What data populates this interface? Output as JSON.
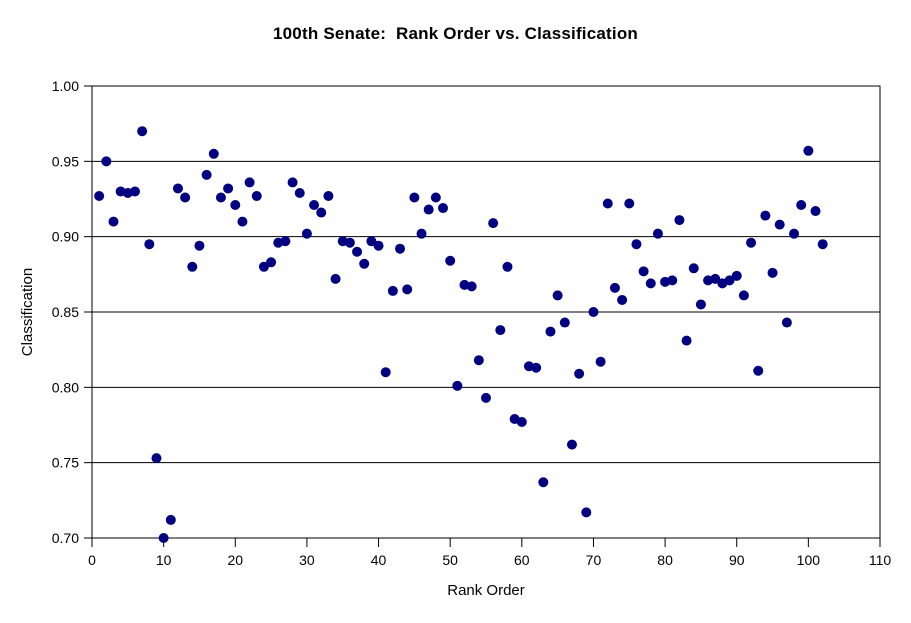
{
  "chart_data": {
    "type": "scatter",
    "title": "100th Senate:  Rank Order vs. Classification",
    "xlabel": "Rank Order",
    "ylabel": "Classification",
    "xlim": [
      0,
      110
    ],
    "ylim": [
      0.7,
      1.0
    ],
    "x_ticks": [
      0,
      10,
      20,
      30,
      40,
      50,
      60,
      70,
      80,
      90,
      100,
      110
    ],
    "y_ticks": [
      0.7,
      0.75,
      0.8,
      0.85,
      0.9,
      0.95,
      1.0
    ],
    "y_tick_labels": [
      "0.70",
      "0.75",
      "0.80",
      "0.85",
      "0.90",
      "0.95",
      "1.00"
    ],
    "grid": "horizontal-only",
    "legend_position": "none",
    "marker_color": "#000080",
    "axis_color": "#000000",
    "background_color": "#ffffff",
    "points": [
      [
        1,
        0.927
      ],
      [
        2,
        0.95
      ],
      [
        3,
        0.91
      ],
      [
        4,
        0.93
      ],
      [
        5,
        0.929
      ],
      [
        6,
        0.93
      ],
      [
        7,
        0.97
      ],
      [
        8,
        0.895
      ],
      [
        9,
        0.753
      ],
      [
        10,
        0.7
      ],
      [
        11,
        0.712
      ],
      [
        12,
        0.932
      ],
      [
        13,
        0.926
      ],
      [
        14,
        0.88
      ],
      [
        15,
        0.894
      ],
      [
        16,
        0.941
      ],
      [
        17,
        0.955
      ],
      [
        18,
        0.926
      ],
      [
        19,
        0.932
      ],
      [
        20,
        0.921
      ],
      [
        21,
        0.91
      ],
      [
        22,
        0.936
      ],
      [
        23,
        0.927
      ],
      [
        24,
        0.88
      ],
      [
        25,
        0.883
      ],
      [
        26,
        0.896
      ],
      [
        27,
        0.897
      ],
      [
        28,
        0.936
      ],
      [
        29,
        0.929
      ],
      [
        30,
        0.902
      ],
      [
        31,
        0.921
      ],
      [
        32,
        0.916
      ],
      [
        33,
        0.927
      ],
      [
        34,
        0.872
      ],
      [
        35,
        0.897
      ],
      [
        36,
        0.896
      ],
      [
        37,
        0.89
      ],
      [
        38,
        0.882
      ],
      [
        39,
        0.897
      ],
      [
        40,
        0.894
      ],
      [
        41,
        0.81
      ],
      [
        42,
        0.864
      ],
      [
        43,
        0.892
      ],
      [
        44,
        0.865
      ],
      [
        45,
        0.926
      ],
      [
        46,
        0.902
      ],
      [
        47,
        0.918
      ],
      [
        48,
        0.926
      ],
      [
        49,
        0.919
      ],
      [
        50,
        0.884
      ],
      [
        51,
        0.801
      ],
      [
        52,
        0.868
      ],
      [
        53,
        0.867
      ],
      [
        54,
        0.818
      ],
      [
        55,
        0.793
      ],
      [
        56,
        0.909
      ],
      [
        57,
        0.838
      ],
      [
        58,
        0.88
      ],
      [
        59,
        0.779
      ],
      [
        60,
        0.777
      ],
      [
        61,
        0.814
      ],
      [
        62,
        0.813
      ],
      [
        63,
        0.737
      ],
      [
        64,
        0.837
      ],
      [
        65,
        0.861
      ],
      [
        66,
        0.843
      ],
      [
        67,
        0.762
      ],
      [
        68,
        0.809
      ],
      [
        69,
        0.717
      ],
      [
        70,
        0.85
      ],
      [
        71,
        0.817
      ],
      [
        72,
        0.922
      ],
      [
        73,
        0.866
      ],
      [
        74,
        0.858
      ],
      [
        75,
        0.922
      ],
      [
        76,
        0.895
      ],
      [
        77,
        0.877
      ],
      [
        78,
        0.869
      ],
      [
        79,
        0.902
      ],
      [
        80,
        0.87
      ],
      [
        81,
        0.871
      ],
      [
        82,
        0.911
      ],
      [
        83,
        0.831
      ],
      [
        84,
        0.879
      ],
      [
        85,
        0.855
      ],
      [
        86,
        0.871
      ],
      [
        87,
        0.872
      ],
      [
        88,
        0.869
      ],
      [
        89,
        0.871
      ],
      [
        90,
        0.874
      ],
      [
        91,
        0.861
      ],
      [
        92,
        0.896
      ],
      [
        93,
        0.811
      ],
      [
        94,
        0.914
      ],
      [
        95,
        0.876
      ],
      [
        96,
        0.908
      ],
      [
        97,
        0.843
      ],
      [
        98,
        0.902
      ],
      [
        99,
        0.921
      ],
      [
        100,
        0.957
      ],
      [
        101,
        0.917
      ],
      [
        102,
        0.895
      ]
    ]
  }
}
